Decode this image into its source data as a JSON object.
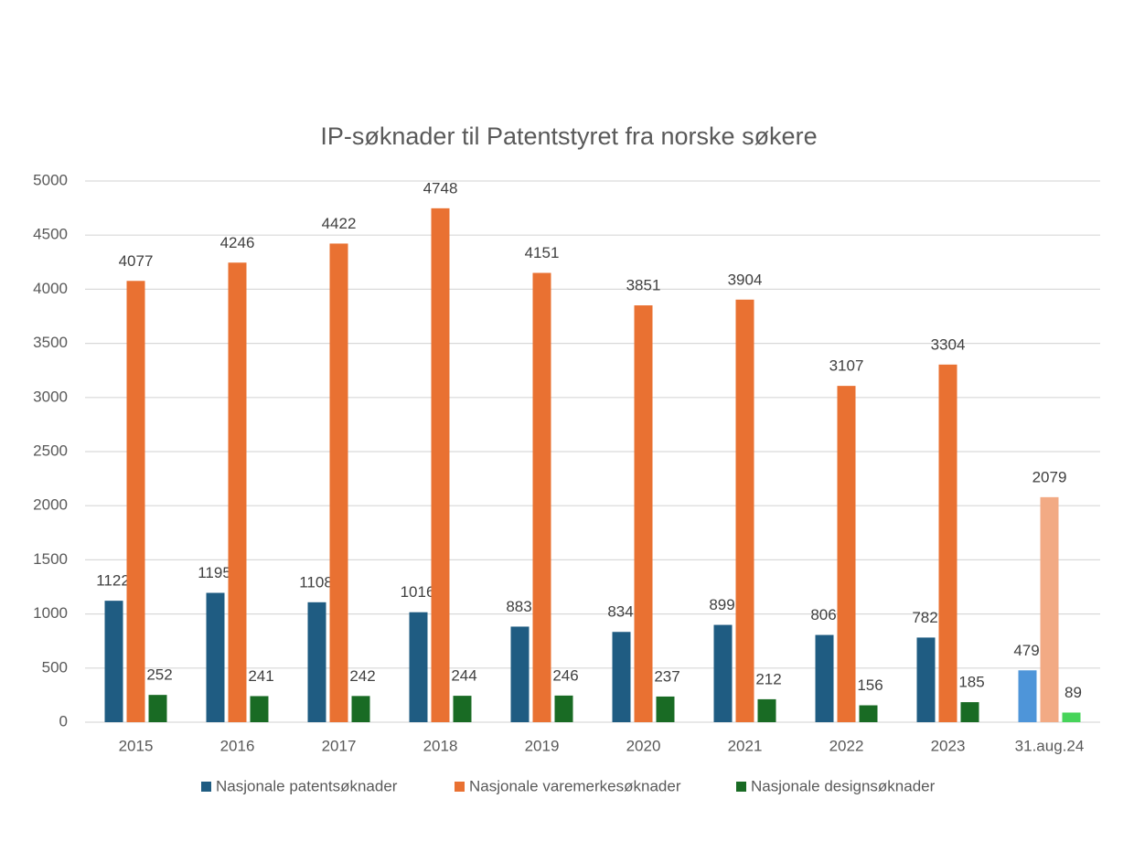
{
  "chart_data": {
    "type": "bar",
    "title": "IP-søknader til Patentstyret fra norske søkere",
    "categories": [
      "2015",
      "2016",
      "2017",
      "2018",
      "2019",
      "2020",
      "2021",
      "2022",
      "2023",
      "31.aug.24"
    ],
    "series": [
      {
        "name": "Nasjonale patentsøknader",
        "color": "#1f5c82",
        "colors": [
          "#1f5c82",
          "#1f5c82",
          "#1f5c82",
          "#1f5c82",
          "#1f5c82",
          "#1f5c82",
          "#1f5c82",
          "#1f5c82",
          "#1f5c82",
          "#4e95d9"
        ],
        "values": [
          1122,
          1195,
          1108,
          1016,
          883,
          834,
          899,
          806,
          782,
          479
        ]
      },
      {
        "name": "Nasjonale varemerkesøknader",
        "color": "#e97132",
        "colors": [
          "#e97132",
          "#e97132",
          "#e97132",
          "#e97132",
          "#e97132",
          "#e97132",
          "#e97132",
          "#e97132",
          "#e97132",
          "#f2aa84"
        ],
        "values": [
          4077,
          4246,
          4422,
          4748,
          4151,
          3851,
          3904,
          3107,
          3304,
          2079
        ]
      },
      {
        "name": "Nasjonale designsøknader",
        "color": "#196b24",
        "colors": [
          "#196b24",
          "#196b24",
          "#196b24",
          "#196b24",
          "#196b24",
          "#196b24",
          "#196b24",
          "#196b24",
          "#196b24",
          "#47d45a"
        ],
        "values": [
          252,
          241,
          242,
          244,
          246,
          237,
          212,
          156,
          185,
          89
        ]
      }
    ],
    "ylim": [
      0,
      5000
    ],
    "yticks": [
      0,
      500,
      1000,
      1500,
      2000,
      2500,
      3000,
      3500,
      4000,
      4500,
      5000
    ],
    "grid": true,
    "legend": "bottom"
  }
}
